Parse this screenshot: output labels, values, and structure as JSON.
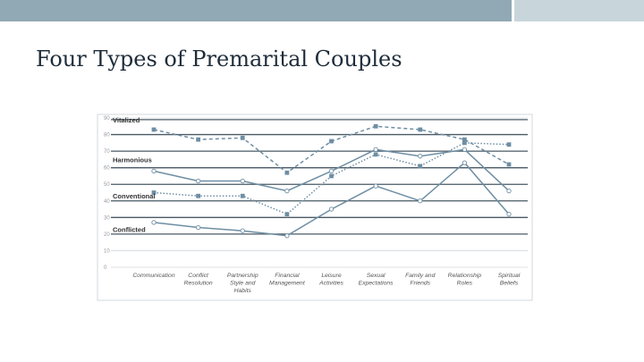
{
  "colors": {
    "bar_main": "#90a9b4",
    "bar_accent": "#c8d6dc",
    "line": "#6e8ea3",
    "grid": "#d3d8dc",
    "band": "#4a5a66",
    "text": "#555555"
  },
  "slide": {
    "title": "Four Types of Premarital Couples"
  },
  "chart_data": {
    "type": "line",
    "categories": [
      "Communication",
      "Conflict Resolution",
      "Partnership Style and Habits",
      "Financial Management",
      "Leisure Activities",
      "Sexual Expectations",
      "Family and Friends",
      "Relationship Roles",
      "Spiritual Beliefs"
    ],
    "category_lines": [
      [
        "Communication"
      ],
      [
        "Conflict",
        "Resolution"
      ],
      [
        "Partnership",
        "Style and",
        "Habits"
      ],
      [
        "Financial",
        "Management"
      ],
      [
        "Leisure",
        "Activities"
      ],
      [
        "Sexual",
        "Expectations"
      ],
      [
        "Family and",
        "Friends"
      ],
      [
        "Relationship",
        "Roles"
      ],
      [
        "Spiritual",
        "Beliefs"
      ]
    ],
    "ylim": [
      0,
      90
    ],
    "yticks": [
      "0",
      "10",
      "20",
      "30",
      "40",
      "50",
      "60",
      "70",
      "80",
      "90"
    ],
    "series": [
      {
        "name": "Vitalized",
        "values": [
          83,
          77,
          78,
          57,
          76,
          85,
          83,
          77,
          62
        ]
      },
      {
        "name": "Harmonious",
        "values": [
          58,
          52,
          52,
          46,
          58,
          71,
          67,
          71,
          46
        ]
      },
      {
        "name": "Conventional",
        "values": [
          45,
          43,
          43,
          32,
          55,
          68,
          61,
          75,
          74
        ]
      },
      {
        "name": "Conflicted",
        "values": [
          27,
          24,
          22,
          19,
          35,
          49,
          40,
          63,
          32
        ]
      }
    ],
    "label_y": [
      89,
      65,
      43,
      23
    ],
    "bands": [
      [
        80,
        89
      ],
      [
        60,
        70
      ],
      [
        40,
        50
      ],
      [
        20,
        30
      ]
    ]
  }
}
